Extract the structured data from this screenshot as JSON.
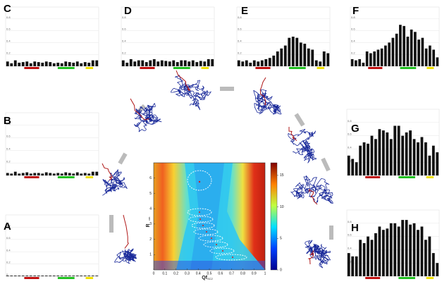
{
  "chart_data": [
    {
      "type": "bar",
      "label": "C",
      "color": "#111111",
      "ylim": [
        0,
        1
      ],
      "yticks": [
        0,
        0.2,
        0.4,
        0.6,
        0.8
      ],
      "values": [
        0.08,
        0.05,
        0.1,
        0.06,
        0.07,
        0.08,
        0.05,
        0.08,
        0.07,
        0.06,
        0.08,
        0.07,
        0.05,
        0.06,
        0.05,
        0.08,
        0.07,
        0.06,
        0.08,
        0.05,
        0.07,
        0.06,
        0.1,
        0.1
      ]
    },
    {
      "type": "bar",
      "label": "D",
      "color": "#111111",
      "ylim": [
        0,
        1
      ],
      "yticks": [
        0,
        0.2,
        0.4,
        0.6,
        0.8
      ],
      "values": [
        0.1,
        0.06,
        0.12,
        0.08,
        0.1,
        0.1,
        0.07,
        0.1,
        0.12,
        0.08,
        0.1,
        0.09,
        0.08,
        0.1,
        0.07,
        0.1,
        0.1,
        0.08,
        0.1,
        0.07,
        0.09,
        0.08,
        0.12,
        0.12
      ]
    },
    {
      "type": "bar",
      "label": "E",
      "color": "#111111",
      "ylim": [
        0,
        1
      ],
      "yticks": [
        0,
        0.2,
        0.4,
        0.6,
        0.8
      ],
      "values": [
        0.1,
        0.08,
        0.1,
        0.06,
        0.1,
        0.08,
        0.1,
        0.12,
        0.14,
        0.18,
        0.25,
        0.3,
        0.35,
        0.48,
        0.5,
        0.48,
        0.4,
        0.38,
        0.3,
        0.28,
        0.1,
        0.08,
        0.25,
        0.22
      ]
    },
    {
      "type": "bar",
      "label": "F",
      "color": "#111111",
      "ylim": [
        0,
        1
      ],
      "yticks": [
        0,
        0.2,
        0.4,
        0.6,
        0.8
      ],
      "values": [
        0.12,
        0.1,
        0.12,
        0.06,
        0.25,
        0.22,
        0.25,
        0.28,
        0.3,
        0.35,
        0.4,
        0.48,
        0.55,
        0.7,
        0.68,
        0.5,
        0.62,
        0.58,
        0.45,
        0.48,
        0.3,
        0.35,
        0.28,
        0.15
      ]
    },
    {
      "type": "bar",
      "label": "B",
      "color": "#111111",
      "ylim": [
        0,
        1
      ],
      "yticks": [
        0,
        0.2,
        0.4,
        0.6,
        0.8
      ],
      "values": [
        0.04,
        0.03,
        0.06,
        0.03,
        0.04,
        0.05,
        0.03,
        0.04,
        0.04,
        0.03,
        0.05,
        0.04,
        0.03,
        0.04,
        0.03,
        0.05,
        0.04,
        0.03,
        0.05,
        0.03,
        0.04,
        0.03,
        0.06,
        0.06
      ]
    },
    {
      "type": "bar",
      "label": "G",
      "color": "#111111",
      "ylim": [
        0,
        1
      ],
      "yticks": [
        0,
        0.2,
        0.4,
        0.6,
        0.8
      ],
      "values": [
        0.3,
        0.25,
        0.2,
        0.45,
        0.5,
        0.48,
        0.6,
        0.55,
        0.7,
        0.68,
        0.65,
        0.55,
        0.75,
        0.75,
        0.6,
        0.65,
        0.68,
        0.55,
        0.5,
        0.58,
        0.5,
        0.3,
        0.45,
        0.35
      ]
    },
    {
      "type": "bar",
      "label": "A",
      "color": "#111111",
      "ylim": [
        0,
        1
      ],
      "yticks": [
        0,
        0.2,
        0.4,
        0.6,
        0.8
      ],
      "values": [
        0.01,
        0.01,
        0.01,
        0.01,
        0.01,
        0.01,
        0.01,
        0.01,
        0.01,
        0.01,
        0.01,
        0.01,
        0.01,
        0.01,
        0.01,
        0.01,
        0.01,
        0.01,
        0.01,
        0.01,
        0.01,
        0.01,
        0.01,
        0.01
      ]
    },
    {
      "type": "bar",
      "label": "H",
      "color": "#111111",
      "ylim": [
        0,
        1
      ],
      "yticks": [
        0,
        0.2,
        0.4,
        0.6,
        0.8
      ],
      "values": [
        0.35,
        0.3,
        0.3,
        0.55,
        0.5,
        0.6,
        0.55,
        0.65,
        0.75,
        0.7,
        0.72,
        0.8,
        0.8,
        0.75,
        0.85,
        0.85,
        0.78,
        0.8,
        0.7,
        0.75,
        0.55,
        0.6,
        0.35,
        0.2
      ]
    },
    {
      "type": "heatmap",
      "xlabel": "Qf",
      "xlabel_sub": "SC2",
      "ylabel": "R",
      "ylabel_sub": "cm",
      "xlim": [
        0,
        1
      ],
      "xticks": [
        0,
        0.1,
        0.2,
        0.3,
        0.4,
        0.5,
        0.6,
        0.7,
        0.8,
        0.9,
        1
      ],
      "ylim": [
        0,
        7
      ],
      "yticks": [
        1,
        2,
        3,
        4,
        5,
        6
      ],
      "clim": [
        0,
        17
      ],
      "cticks": [
        0,
        5,
        10,
        15
      ]
    }
  ]
}
